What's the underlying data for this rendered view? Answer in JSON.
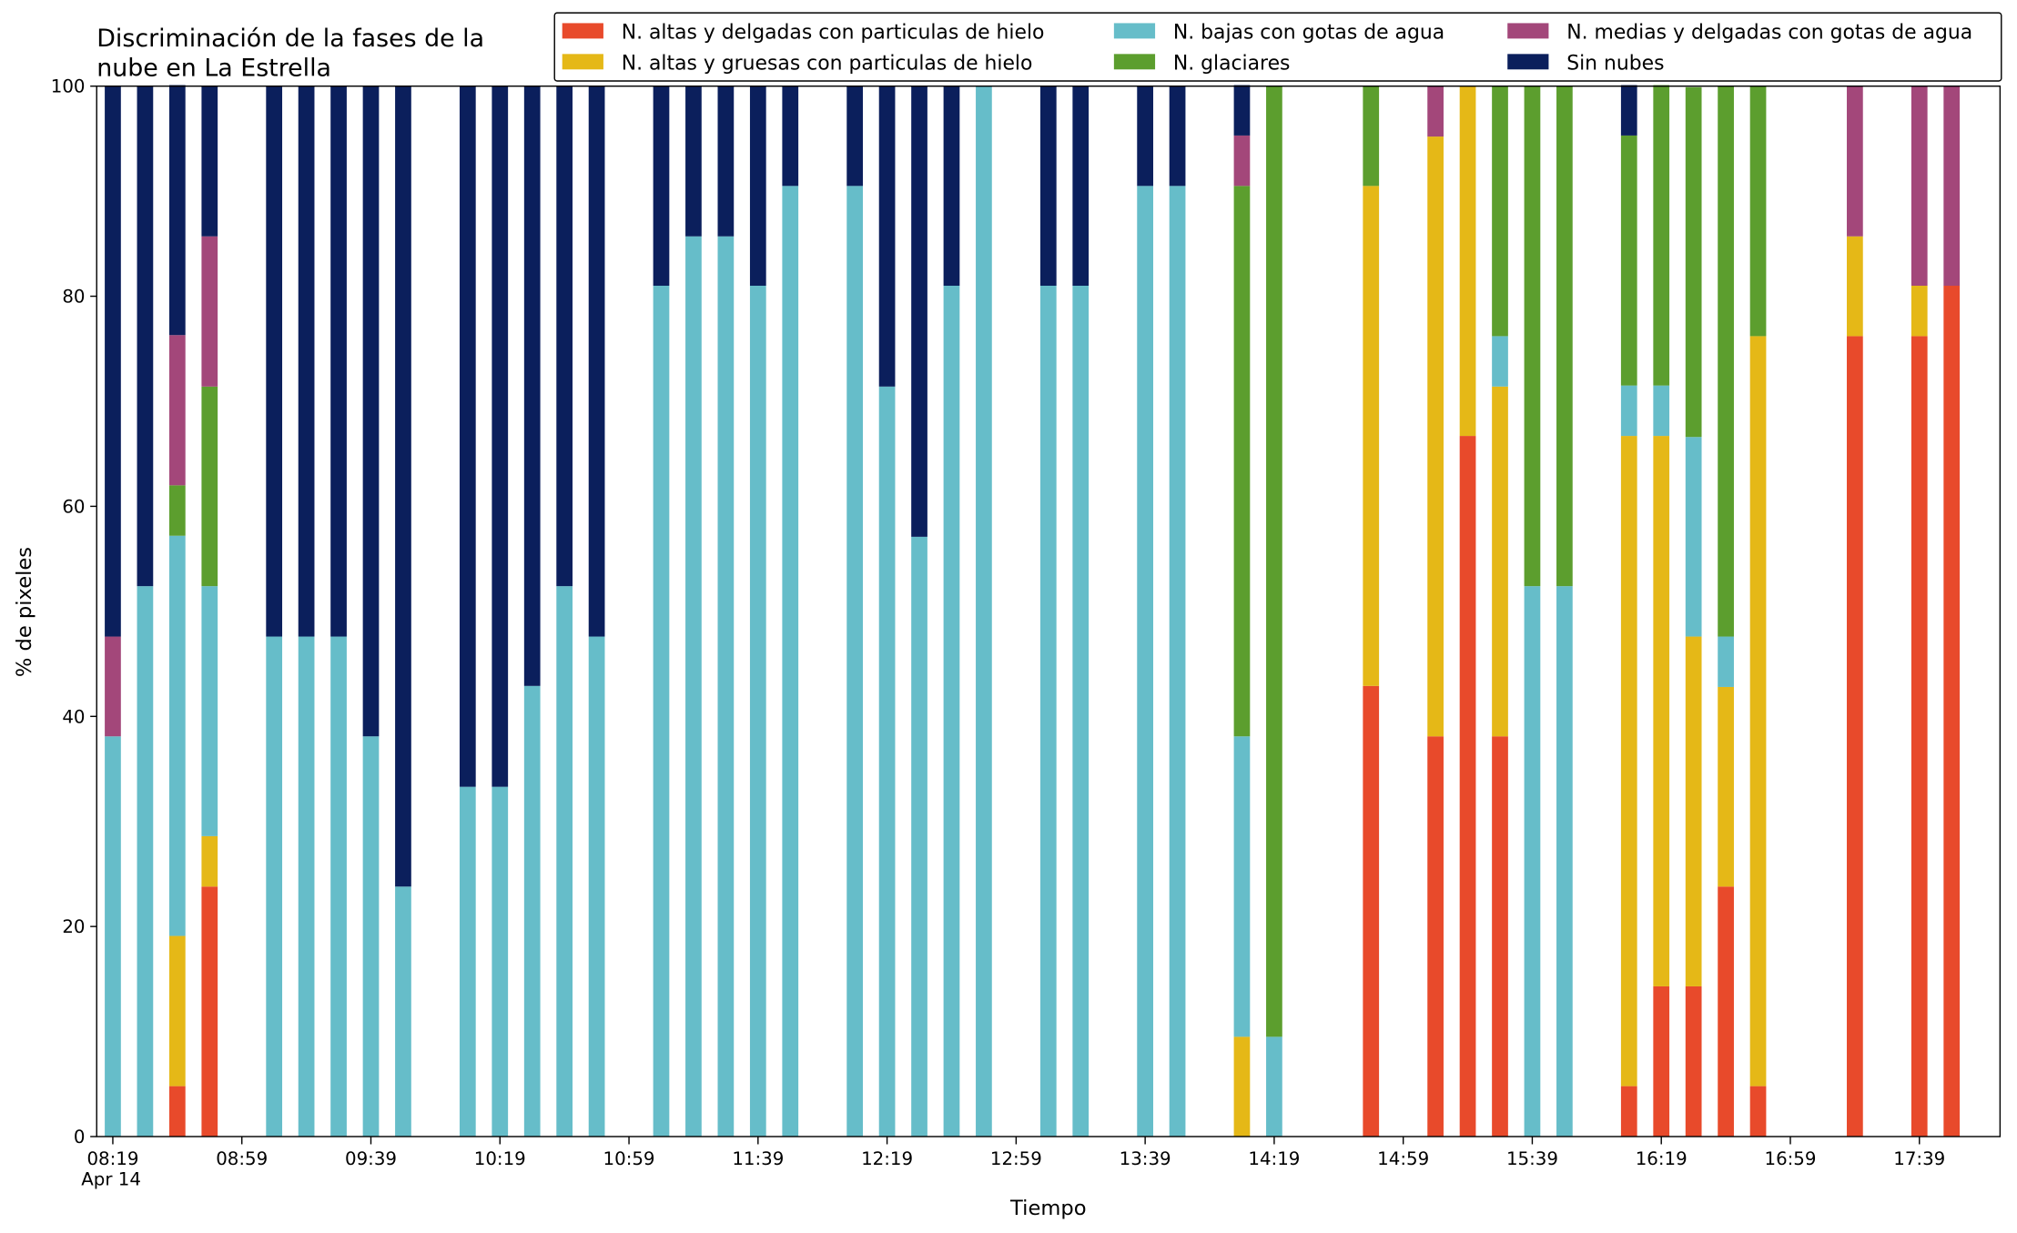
{
  "chart_data": {
    "type": "bar",
    "stacked": true,
    "title": [
      "Discriminación de la fases de la",
      "nube en La Estrella"
    ],
    "x_label": "Tiempo",
    "y_label": "% de pixeles",
    "date_label": "Apr 14",
    "legend": "upper right",
    "grid": false,
    "x": [
      "08:19",
      "08:29",
      "08:39",
      "08:49",
      "09:09",
      "09:19",
      "09:29",
      "09:39",
      "09:49",
      "10:09",
      "10:19",
      "10:29",
      "10:39",
      "10:49",
      "11:09",
      "11:19",
      "11:29",
      "11:39",
      "11:49",
      "12:09",
      "12:19",
      "12:29",
      "12:39",
      "12:49",
      "13:09",
      "13:19",
      "13:39",
      "13:49",
      "14:09",
      "14:19",
      "14:49",
      "15:09",
      "15:19",
      "15:29",
      "15:39",
      "15:49",
      "16:09",
      "16:19",
      "16:29",
      "16:39",
      "16:49",
      "17:19",
      "17:39",
      "17:49"
    ],
    "xlim": [
      "08:14",
      "18:04"
    ],
    "xticks": [
      "08:19",
      "08:59",
      "09:39",
      "10:19",
      "10:59",
      "11:39",
      "12:19",
      "12:59",
      "13:39",
      "14:19",
      "14:59",
      "15:39",
      "16:19",
      "16:59",
      "17:39"
    ],
    "ylim": [
      0,
      100
    ],
    "yticks": [
      0,
      20,
      40,
      60,
      80,
      100
    ],
    "series": [
      {
        "name": "N. altas y delgadas con particulas de hielo",
        "color": "#e84a2b",
        "values": [
          0,
          0,
          4.8,
          23.8,
          0,
          0,
          0,
          0,
          0,
          0,
          0,
          0,
          0,
          0,
          0,
          0,
          0,
          0,
          0,
          0,
          0,
          0,
          0,
          0,
          0,
          0,
          0,
          0,
          0,
          0,
          42.9,
          38.1,
          66.7,
          38.1,
          0,
          0,
          4.8,
          14.3,
          14.3,
          23.8,
          4.8,
          76.2,
          76.2,
          81.0
        ]
      },
      {
        "name": "N. altas y gruesas con particulas de hielo",
        "color": "#e5b817",
        "values": [
          0,
          0,
          14.3,
          4.8,
          0,
          0,
          0,
          0,
          0,
          0,
          0,
          0,
          0,
          0,
          0,
          0,
          0,
          0,
          0,
          0,
          0,
          0,
          0,
          0,
          0,
          0,
          0,
          0,
          9.5,
          0,
          47.6,
          57.1,
          33.3,
          33.3,
          0,
          0,
          61.9,
          52.4,
          33.3,
          19.0,
          71.4,
          9.5,
          4.8,
          0
        ]
      },
      {
        "name": "N. bajas con gotas de agua",
        "color": "#66bdc9",
        "values": [
          38.1,
          52.4,
          38.1,
          23.8,
          47.6,
          47.6,
          47.6,
          38.1,
          23.8,
          33.3,
          33.3,
          42.9,
          52.4,
          47.6,
          81.0,
          85.7,
          85.7,
          81.0,
          90.5,
          90.5,
          71.4,
          57.1,
          81.0,
          100,
          81.0,
          81.0,
          90.5,
          90.5,
          28.6,
          9.5,
          0,
          0,
          0,
          4.8,
          52.4,
          52.4,
          4.8,
          4.8,
          19.0,
          4.8,
          0,
          0,
          0,
          0
        ]
      },
      {
        "name": "N. glaciares",
        "color": "#5c9e2e",
        "values": [
          0,
          0,
          4.8,
          19.0,
          0,
          0,
          0,
          0,
          0,
          0,
          0,
          0,
          0,
          0,
          0,
          0,
          0,
          0,
          0,
          0,
          0,
          0,
          0,
          0,
          0,
          0,
          0,
          0,
          52.4,
          90.5,
          9.5,
          0,
          0,
          23.8,
          47.6,
          47.6,
          23.8,
          28.6,
          33.3,
          52.4,
          23.8,
          0,
          0,
          0
        ]
      },
      {
        "name": "N. medias y delgadas con gotas de agua",
        "color": "#a3477a",
        "values": [
          9.5,
          0,
          14.3,
          14.3,
          0,
          0,
          0,
          0,
          0,
          0,
          0,
          0,
          0,
          0,
          0,
          0,
          0,
          0,
          0,
          0,
          0,
          0,
          0,
          0,
          0,
          0,
          0,
          0,
          4.8,
          0,
          0,
          4.8,
          0,
          0,
          0,
          0,
          0,
          0,
          0,
          0,
          0,
          14.3,
          19.0,
          19.0
        ]
      },
      {
        "name": "Sin nubes",
        "color": "#0b1f5c",
        "values": [
          52.4,
          47.6,
          23.8,
          14.3,
          52.4,
          52.4,
          52.4,
          61.9,
          76.2,
          66.7,
          66.7,
          57.1,
          47.6,
          52.4,
          19.0,
          14.3,
          14.3,
          19.0,
          9.5,
          9.5,
          28.6,
          42.9,
          19.0,
          0,
          19.0,
          19.0,
          9.5,
          9.5,
          4.8,
          0,
          0,
          0,
          0,
          0,
          0,
          0,
          4.8,
          0,
          0,
          0,
          0,
          0,
          0,
          0
        ]
      }
    ]
  }
}
